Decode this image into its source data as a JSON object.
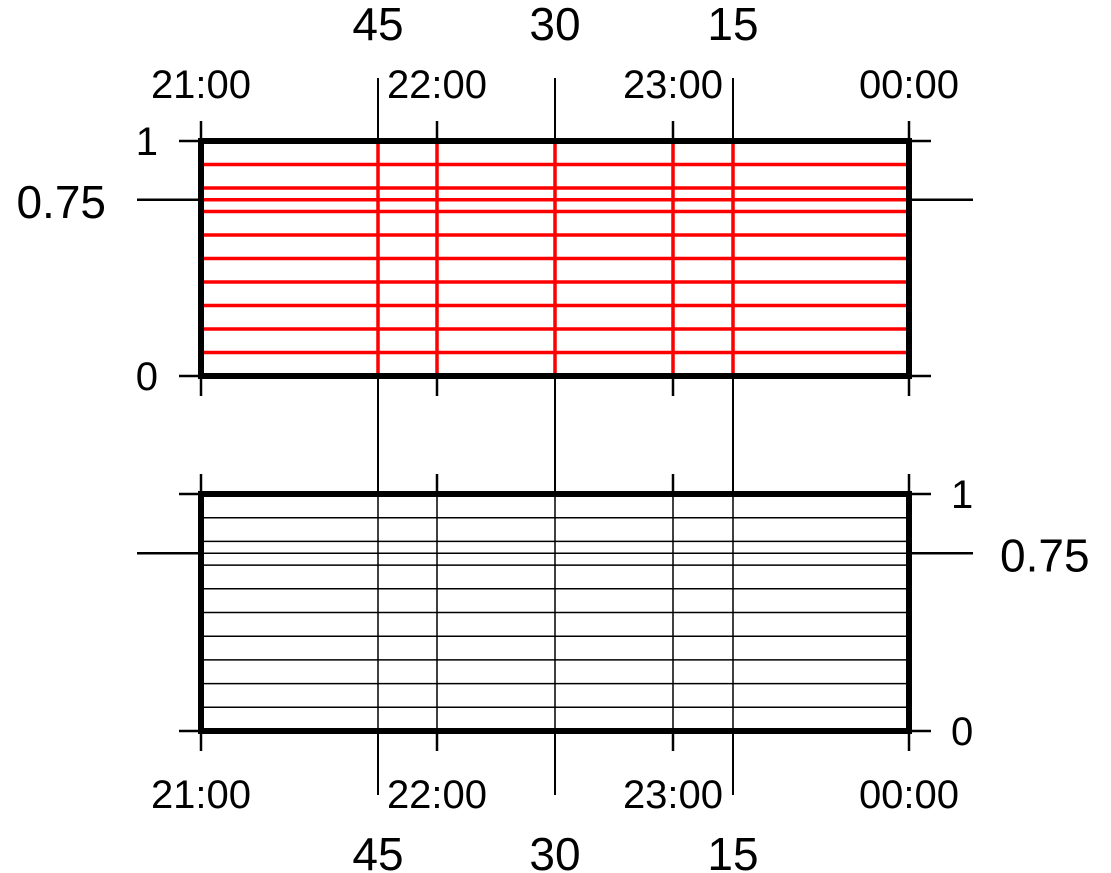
{
  "colors": {
    "frame": "#000000",
    "red_grid": "#ff0000",
    "black_grid": "#000000",
    "background": "#ffffff"
  },
  "chart_data": [
    {
      "type": "line",
      "panel": "top",
      "grid": true,
      "grid_color": "red",
      "x_axis": {
        "range": [
          "21:00",
          "00:00"
        ],
        "time_ticks": [
          "21:00",
          "22:00",
          "23:00",
          "00:00"
        ],
        "angle_ticks": [
          "45",
          "30",
          "15"
        ],
        "time_labels_side": "top",
        "angle_labels_side": "top"
      },
      "y_axis": {
        "range": [
          0,
          1
        ],
        "ticks": [
          "0",
          "1"
        ],
        "extra_tick": "0.75",
        "labels_side": "left"
      },
      "horizontal_gridlines": [
        0.1,
        0.2,
        0.3,
        0.4,
        0.5,
        0.6,
        0.7,
        0.75,
        0.8,
        0.9
      ],
      "vertical_gridlines_time": [
        "22:00",
        "23:00"
      ],
      "vertical_gridlines_angle": [
        "45",
        "30",
        "15"
      ]
    },
    {
      "type": "line",
      "panel": "bottom",
      "grid": true,
      "grid_color": "black",
      "x_axis": {
        "range": [
          "21:00",
          "00:00"
        ],
        "time_ticks": [
          "21:00",
          "22:00",
          "23:00",
          "00:00"
        ],
        "angle_ticks": [
          "45",
          "30",
          "15"
        ],
        "time_labels_side": "bottom",
        "angle_labels_side": "bottom"
      },
      "y_axis": {
        "range": [
          0,
          1
        ],
        "ticks": [
          "0",
          "1"
        ],
        "extra_tick": "0.75",
        "labels_side": "right"
      },
      "horizontal_gridlines": [
        0.1,
        0.2,
        0.3,
        0.4,
        0.5,
        0.6,
        0.7,
        0.75,
        0.8,
        0.9
      ],
      "vertical_gridlines_time": [
        "22:00",
        "23:00"
      ],
      "vertical_gridlines_angle": [
        "45",
        "30",
        "15"
      ]
    }
  ]
}
